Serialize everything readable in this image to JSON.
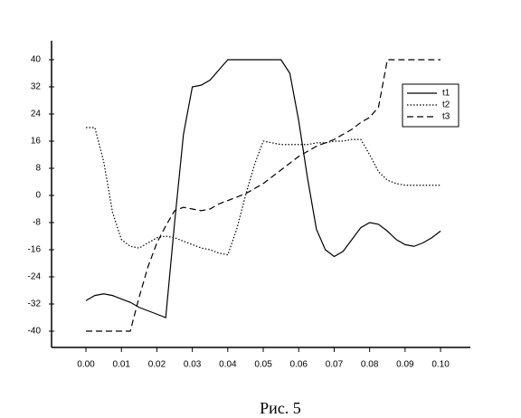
{
  "chart_data": {
    "type": "line",
    "caption": "Рис. 5",
    "x": [
      0,
      0.0025,
      0.005,
      0.0075,
      0.01,
      0.0125,
      0.015,
      0.0175,
      0.02,
      0.0225,
      0.025,
      0.0275,
      0.03,
      0.0325,
      0.035,
      0.0375,
      0.04,
      0.0425,
      0.045,
      0.0475,
      0.05,
      0.0525,
      0.055,
      0.0575,
      0.06,
      0.0625,
      0.065,
      0.0675,
      0.07,
      0.0725,
      0.075,
      0.0775,
      0.08,
      0.0825,
      0.085,
      0.0875,
      0.09,
      0.0925,
      0.095,
      0.0975,
      0.1
    ],
    "series": [
      {
        "name": "t1",
        "color": "#000000",
        "dash": "solid",
        "values": [
          -31,
          -29.5,
          -29,
          -29.5,
          -30.5,
          -31.5,
          -33,
          -34,
          -35,
          -36,
          -8,
          18,
          32,
          32.5,
          34,
          37,
          40,
          40,
          40,
          40,
          40,
          40,
          40,
          36,
          22,
          5,
          -10,
          -16,
          -18,
          -16.5,
          -13,
          -9.5,
          -8,
          -8.5,
          -10.5,
          -13,
          -14.5,
          -15,
          -14,
          -12.5,
          -10.5
        ]
      },
      {
        "name": "t2",
        "color": "#000000",
        "dash": "dotted",
        "values": [
          20,
          20,
          10,
          -5,
          -13,
          -15,
          -15.5,
          -14,
          -12.5,
          -12,
          -12.5,
          -13.5,
          -14.5,
          -15.5,
          -16,
          -17,
          -17.5,
          -10,
          0,
          9,
          16,
          15.5,
          15,
          15,
          15,
          15,
          15.5,
          15.5,
          16,
          16,
          16.5,
          16.5,
          12,
          7,
          4.5,
          3.5,
          3,
          3,
          3,
          3,
          3
        ]
      },
      {
        "name": "t3",
        "color": "#000000",
        "dash": "dashed",
        "values": [
          -40,
          -40,
          -40,
          -40,
          -40,
          -40,
          -30,
          -21,
          -14,
          -9,
          -4.5,
          -3.5,
          -4,
          -4.5,
          -4,
          -2.5,
          -1.5,
          -0.5,
          0.5,
          2,
          3.5,
          5.5,
          7.5,
          9.5,
          11.5,
          13,
          14.5,
          15.5,
          16.5,
          18,
          19.5,
          21.5,
          23,
          26,
          40,
          40,
          40,
          40,
          40,
          40,
          40
        ]
      }
    ],
    "xlim": [
      -0.0097,
      0.1084
    ],
    "ylim": [
      -44.8,
      45.6
    ],
    "xticks": [
      {
        "value": 0,
        "label": "0.00"
      },
      {
        "value": 0.01,
        "label": "0.01"
      },
      {
        "value": 0.02,
        "label": "0.02"
      },
      {
        "value": 0.03,
        "label": "0.03"
      },
      {
        "value": 0.04,
        "label": "0.04"
      },
      {
        "value": 0.05,
        "label": "0.05"
      },
      {
        "value": 0.06,
        "label": "0.06"
      },
      {
        "value": 0.07,
        "label": "0.07"
      },
      {
        "value": 0.08,
        "label": "0.08"
      },
      {
        "value": 0.09,
        "label": "0.09"
      },
      {
        "value": 0.1,
        "label": "0.10"
      }
    ],
    "yticks": [
      -40,
      -32,
      -24,
      -16,
      -8,
      0,
      8,
      16,
      24,
      32,
      40
    ],
    "grid": false,
    "legend": "upper right"
  }
}
